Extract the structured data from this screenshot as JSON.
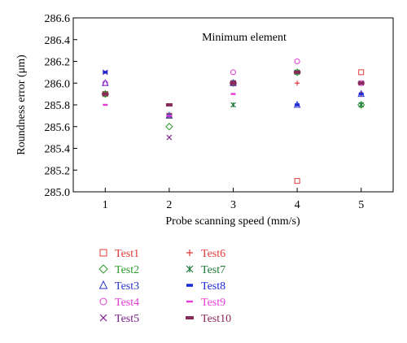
{
  "chart_data": {
    "type": "scatter",
    "title": "",
    "annotation": "Minimum element",
    "xlabel": "Probe scanning speed (mm/s)",
    "ylabel": "Roundness error (μm)",
    "xlim": [
      0.5,
      5.5
    ],
    "ylim": [
      285.0,
      286.6
    ],
    "x_ticks": [
      "1",
      "2",
      "3",
      "4",
      "5"
    ],
    "y_ticks": [
      "285.0",
      "285.2",
      "285.4",
      "285.6",
      "285.8",
      "286.0",
      "286.2",
      "286.4",
      "286.6"
    ],
    "grid": false,
    "legend_position": "bottom",
    "x": [
      1,
      2,
      3,
      4,
      5
    ],
    "series": [
      {
        "name": "Test1",
        "marker": "square",
        "color": "#e03a3a",
        "values": [
          285.9,
          285.7,
          286.0,
          285.1,
          286.1
        ]
      },
      {
        "name": "Test2",
        "marker": "diamond",
        "color": "#2e9a2e",
        "values": [
          285.9,
          285.6,
          286.0,
          286.1,
          285.8
        ]
      },
      {
        "name": "Test3",
        "marker": "triangle",
        "color": "#2a36c8",
        "values": [
          286.0,
          285.7,
          286.0,
          285.8,
          285.9
        ]
      },
      {
        "name": "Test4",
        "marker": "circle",
        "color": "#e03ad0",
        "values": [
          286.0,
          285.7,
          286.1,
          286.2,
          286.0
        ]
      },
      {
        "name": "Test5",
        "marker": "x",
        "color": "#7a1f8a",
        "values": [
          286.1,
          285.5,
          286.0,
          286.1,
          286.0
        ]
      },
      {
        "name": "Test6",
        "marker": "plus",
        "color": "#e03a3a",
        "values": [
          285.9,
          285.7,
          286.0,
          286.0,
          285.9
        ]
      },
      {
        "name": "Test7",
        "marker": "star",
        "color": "#1f7a3a",
        "values": [
          285.9,
          285.7,
          285.8,
          286.1,
          285.8
        ]
      },
      {
        "name": "Test8",
        "marker": "bar",
        "color": "#1f2ad8",
        "values": [
          286.1,
          285.7,
          286.0,
          285.8,
          285.9
        ]
      },
      {
        "name": "Test9",
        "marker": "dash",
        "color": "#e83ad8",
        "values": [
          285.8,
          285.7,
          285.9,
          286.1,
          286.0
        ]
      },
      {
        "name": "Test10",
        "marker": "wide-bar",
        "color": "#8a2a5a",
        "values": [
          285.9,
          285.8,
          286.0,
          286.1,
          286.0
        ]
      }
    ]
  }
}
